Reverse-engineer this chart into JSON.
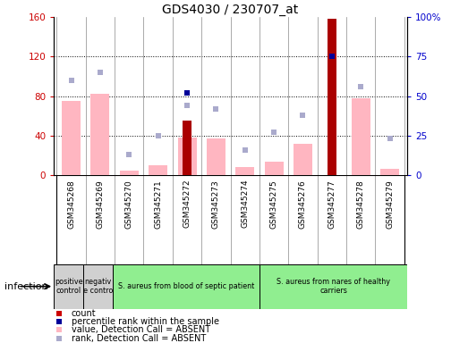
{
  "title": "GDS4030 / 230707_at",
  "samples": [
    "GSM345268",
    "GSM345269",
    "GSM345270",
    "GSM345271",
    "GSM345272",
    "GSM345273",
    "GSM345274",
    "GSM345275",
    "GSM345276",
    "GSM345277",
    "GSM345278",
    "GSM345279"
  ],
  "count_values": [
    0,
    0,
    0,
    0,
    55,
    0,
    0,
    0,
    0,
    158,
    0,
    0
  ],
  "pink_bar_values": [
    75,
    82,
    4,
    10,
    38,
    37,
    8,
    13,
    32,
    0,
    78,
    6
  ],
  "blue_dot_present": [
    false,
    false,
    false,
    false,
    true,
    false,
    false,
    false,
    false,
    true,
    false,
    false
  ],
  "blue_dot_values": [
    52,
    65,
    0,
    0,
    52,
    0,
    0,
    0,
    0,
    75,
    0,
    0
  ],
  "light_blue_values": [
    60,
    65,
    13,
    25,
    44,
    42,
    16,
    27,
    38,
    75,
    56,
    23
  ],
  "ylim_left": [
    0,
    160
  ],
  "ylim_right": [
    0,
    100
  ],
  "yticks_left": [
    0,
    40,
    80,
    120,
    160
  ],
  "ytick_labels_left": [
    "0",
    "40",
    "80",
    "120",
    "160"
  ],
  "yticks_right": [
    0,
    25,
    50,
    75,
    100
  ],
  "ytick_labels_right": [
    "0",
    "25",
    "50",
    "75",
    "100%"
  ],
  "group_labels": [
    "positive\ncontrol",
    "negativ\ne contro",
    "S. aureus from blood of septic patient",
    "S. aureus from nares of healthy\ncarriers"
  ],
  "group_ranges": [
    [
      0,
      1
    ],
    [
      1,
      2
    ],
    [
      2,
      7
    ],
    [
      7,
      12
    ]
  ],
  "group_colors": [
    "#d0d0d0",
    "#d0d0d0",
    "#90ee90",
    "#90ee90"
  ],
  "infection_label": "infection",
  "legend_items": [
    "count",
    "percentile rank within the sample",
    "value, Detection Call = ABSENT",
    "rank, Detection Call = ABSENT"
  ],
  "legend_colors": [
    "#cc0000",
    "#000099",
    "#ffb6c1",
    "#aaaacc"
  ]
}
